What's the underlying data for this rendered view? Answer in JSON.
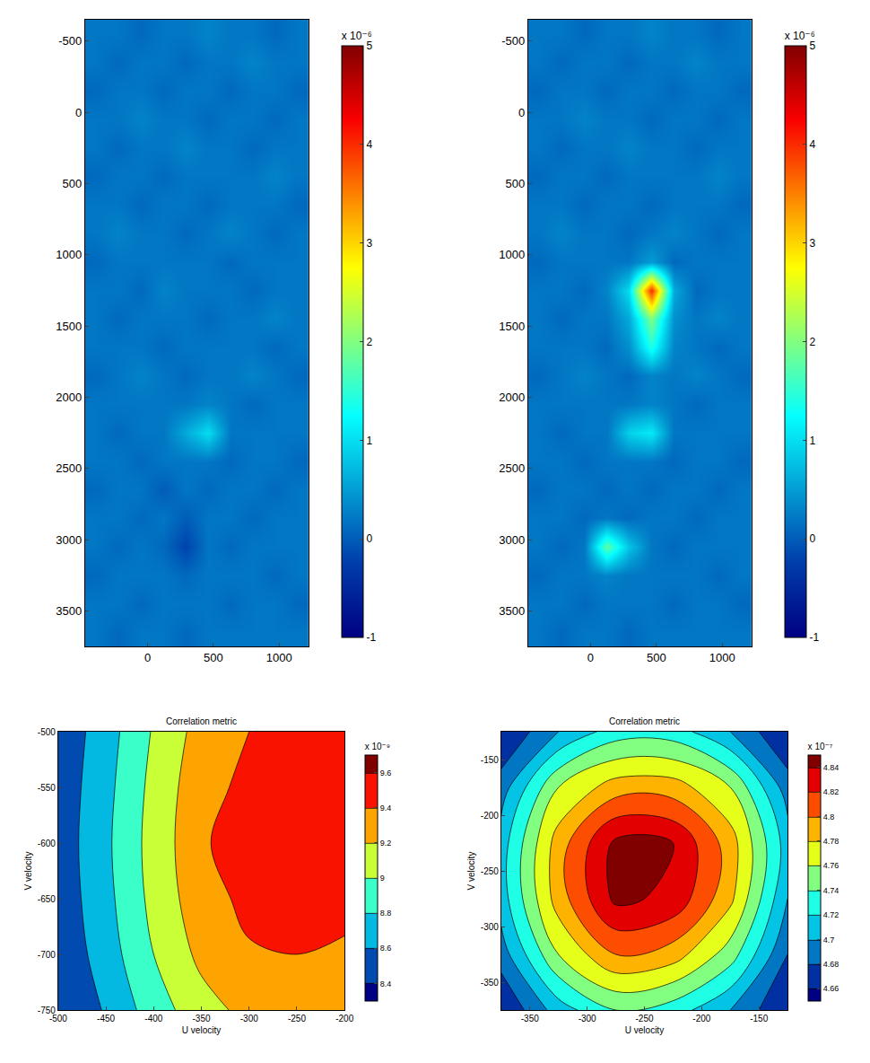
{
  "chart_data": [
    {
      "type": "heatmap",
      "x": [
        -475,
        -305,
        -135,
        35,
        205,
        375,
        545,
        715,
        885,
        1055,
        1225
      ],
      "y": [
        -650,
        -450,
        -250,
        -50,
        150,
        350,
        550,
        750,
        950,
        1150,
        1350,
        1550,
        1750,
        1950,
        2150,
        2350,
        2550,
        2750,
        2950,
        3150,
        3350,
        3550,
        3750
      ],
      "xlim": [
        -475,
        1225
      ],
      "ylim": [
        3750,
        -650
      ],
      "xticks": [
        0,
        500,
        1000
      ],
      "yticks": [
        -500,
        0,
        500,
        1000,
        1500,
        2000,
        2500,
        3000,
        3500
      ],
      "zlim": [
        -1,
        5
      ],
      "zticks": [
        -1,
        0,
        1,
        2,
        3,
        4,
        5
      ],
      "colorbar_label": "x 10⁻⁶",
      "z": [
        [
          0.2,
          0.2,
          0.1,
          0.2,
          0.2,
          0.3,
          0.2,
          0.2,
          0.1,
          0.2
        ],
        [
          0.2,
          0.1,
          0.2,
          0.2,
          0.1,
          0.2,
          0.2,
          0.3,
          0.2,
          0.2
        ],
        [
          0.1,
          0.2,
          0.2,
          0.1,
          0.2,
          0.2,
          0.1,
          0.2,
          0.2,
          0.1
        ],
        [
          0.2,
          0.2,
          0.3,
          0.2,
          0.2,
          0.1,
          0.2,
          0.2,
          0.1,
          0.2
        ],
        [
          0.2,
          0.1,
          0.2,
          0.2,
          0.3,
          0.2,
          0.2,
          0.1,
          0.2,
          0.2
        ],
        [
          0.1,
          0.2,
          0.2,
          0.1,
          0.2,
          0.2,
          0.2,
          0.2,
          0.3,
          0.2
        ],
        [
          0.2,
          0.2,
          0.1,
          0.2,
          0.2,
          0.1,
          0.2,
          0.2,
          0.2,
          0.1
        ],
        [
          0.2,
          0.3,
          0.2,
          0.2,
          0.1,
          0.2,
          0.3,
          0.2,
          0.1,
          0.2
        ],
        [
          0.1,
          0.2,
          0.2,
          0.2,
          0.2,
          0.2,
          0.1,
          0.2,
          0.2,
          0.2
        ],
        [
          0.2,
          0.2,
          0.1,
          0.3,
          0.2,
          0.2,
          0.2,
          0.1,
          0.2,
          0.2
        ],
        [
          0.2,
          0.1,
          0.2,
          0.2,
          0.2,
          0.1,
          0.2,
          0.2,
          0.3,
          0.2
        ],
        [
          0.2,
          0.2,
          0.2,
          0.1,
          0.2,
          0.2,
          0.2,
          0.2,
          0.1,
          0.2
        ],
        [
          0.1,
          0.2,
          0.3,
          0.2,
          0.1,
          0.2,
          0.2,
          0.3,
          0.2,
          0.1
        ],
        [
          0.2,
          0.2,
          0.2,
          0.2,
          0.2,
          0.3,
          0.2,
          0.1,
          0.2,
          0.2
        ],
        [
          0.2,
          0.1,
          0.2,
          0.2,
          0.6,
          1.0,
          0.2,
          0.2,
          0.2,
          0.2
        ],
        [
          0.2,
          0.2,
          0.1,
          0.2,
          0.2,
          0.2,
          0.1,
          0.2,
          0.2,
          0.1
        ],
        [
          0.1,
          0.2,
          0.2,
          0.0,
          0.2,
          0.1,
          0.2,
          0.2,
          0.1,
          0.2
        ],
        [
          0.2,
          0.2,
          0.1,
          0.2,
          0.0,
          0.2,
          0.2,
          0.1,
          0.2,
          0.2
        ],
        [
          0.2,
          0.1,
          0.2,
          0.1,
          -0.2,
          0.2,
          0.1,
          0.2,
          0.2,
          0.2
        ],
        [
          0.1,
          0.2,
          0.2,
          0.2,
          0.1,
          0.2,
          0.2,
          0.2,
          0.1,
          0.2
        ],
        [
          0.2,
          0.2,
          0.1,
          0.2,
          0.2,
          0.2,
          0.1,
          0.2,
          0.2,
          0.1
        ],
        [
          0.2,
          0.1,
          0.2,
          0.2,
          0.1,
          0.2,
          0.2,
          0.2,
          0.2,
          0.2
        ]
      ]
    },
    {
      "type": "heatmap",
      "x": [
        -475,
        -305,
        -135,
        35,
        205,
        375,
        545,
        715,
        885,
        1055,
        1225
      ],
      "y": [
        -650,
        -450,
        -250,
        -50,
        150,
        350,
        550,
        750,
        950,
        1150,
        1350,
        1550,
        1750,
        1950,
        2150,
        2350,
        2550,
        2750,
        2950,
        3150,
        3350,
        3550,
        3750
      ],
      "xlim": [
        -475,
        1225
      ],
      "ylim": [
        3750,
        -650
      ],
      "xticks": [
        0,
        500,
        1000
      ],
      "yticks": [
        -500,
        0,
        500,
        1000,
        1500,
        2000,
        2500,
        3000,
        3500
      ],
      "zlim": [
        -1,
        5
      ],
      "zticks": [
        -1,
        0,
        1,
        2,
        3,
        4,
        5
      ],
      "colorbar_label": "x 10⁻⁶",
      "z": [
        [
          0.2,
          0.2,
          0.1,
          0.2,
          0.2,
          0.3,
          0.2,
          0.2,
          0.1,
          0.2
        ],
        [
          0.2,
          0.1,
          0.2,
          0.2,
          0.1,
          0.2,
          0.2,
          0.3,
          0.2,
          0.2
        ],
        [
          0.1,
          0.2,
          0.2,
          0.1,
          0.2,
          0.2,
          0.1,
          0.2,
          0.2,
          0.1
        ],
        [
          0.2,
          0.2,
          0.3,
          0.2,
          0.2,
          0.1,
          0.2,
          0.2,
          0.1,
          0.2
        ],
        [
          0.2,
          0.1,
          0.2,
          0.2,
          0.3,
          0.2,
          0.2,
          0.1,
          0.2,
          0.2
        ],
        [
          0.1,
          0.2,
          0.2,
          0.1,
          0.2,
          0.2,
          0.2,
          0.2,
          0.3,
          0.2
        ],
        [
          0.2,
          0.2,
          0.1,
          0.2,
          0.2,
          0.1,
          0.2,
          0.2,
          0.2,
          0.1
        ],
        [
          0.2,
          0.3,
          0.2,
          0.2,
          0.1,
          0.2,
          0.3,
          0.2,
          0.1,
          0.2
        ],
        [
          0.1,
          0.2,
          0.2,
          0.2,
          0.2,
          0.5,
          0.1,
          0.2,
          0.2,
          0.2
        ],
        [
          0.2,
          0.2,
          0.1,
          0.3,
          1.0,
          4.0,
          0.6,
          0.1,
          0.2,
          0.2
        ],
        [
          0.2,
          0.1,
          0.2,
          0.2,
          0.6,
          2.0,
          0.4,
          0.2,
          0.3,
          0.2
        ],
        [
          0.2,
          0.2,
          0.2,
          0.1,
          0.4,
          1.4,
          0.3,
          0.2,
          0.1,
          0.2
        ],
        [
          0.1,
          0.2,
          0.3,
          0.2,
          0.1,
          0.3,
          0.2,
          0.3,
          0.2,
          0.1
        ],
        [
          0.2,
          0.2,
          0.2,
          0.2,
          0.2,
          0.3,
          0.2,
          0.1,
          0.2,
          0.2
        ],
        [
          0.2,
          0.1,
          0.2,
          0.2,
          0.9,
          1.1,
          0.2,
          0.2,
          0.2,
          0.2
        ],
        [
          0.2,
          0.2,
          0.1,
          0.2,
          0.2,
          0.2,
          0.1,
          0.2,
          0.2,
          0.1
        ],
        [
          0.1,
          0.2,
          0.2,
          0.1,
          0.2,
          0.1,
          0.2,
          0.2,
          0.1,
          0.2
        ],
        [
          0.2,
          0.2,
          0.1,
          0.2,
          0.1,
          0.2,
          0.2,
          0.1,
          0.2,
          0.2
        ],
        [
          0.2,
          0.1,
          0.2,
          1.8,
          0.8,
          0.2,
          0.1,
          0.2,
          0.2,
          0.2
        ],
        [
          0.1,
          0.2,
          0.2,
          0.3,
          0.2,
          0.2,
          0.2,
          0.2,
          0.1,
          0.2
        ],
        [
          0.2,
          0.2,
          0.1,
          0.2,
          0.2,
          0.2,
          0.1,
          0.2,
          0.2,
          0.1
        ],
        [
          0.2,
          0.1,
          0.2,
          0.2,
          0.1,
          0.2,
          0.2,
          0.2,
          0.2,
          0.2
        ]
      ]
    },
    {
      "type": "contour",
      "title": "Correlation metric",
      "x_label": "U velocity",
      "y_label": "V velocity",
      "x": [
        -500,
        -450,
        -400,
        -350,
        -300,
        -250,
        -200
      ],
      "y": [
        -750,
        -700,
        -650,
        -600,
        -550,
        -500
      ],
      "xlim": [
        -500,
        -200
      ],
      "ylim": [
        -750,
        -500
      ],
      "xticks": [
        -500,
        -450,
        -400,
        -350,
        -300,
        -250,
        -200
      ],
      "yticks": [
        -750,
        -700,
        -650,
        -600,
        -550,
        -500
      ],
      "zlim": [
        8.35,
        9.62
      ],
      "zticks": [
        8.4,
        8.6,
        8.8,
        9,
        9.2,
        9.4,
        9.6
      ],
      "colorbar_label": "x 10⁻⁹",
      "z": [
        [
          8.4,
          8.62,
          8.9,
          9.12,
          9.26,
          9.3,
          9.28
        ],
        [
          8.44,
          8.7,
          9.0,
          9.25,
          9.38,
          9.4,
          9.38
        ],
        [
          8.47,
          8.74,
          9.06,
          9.32,
          9.45,
          9.46,
          9.44
        ],
        [
          8.48,
          8.76,
          9.08,
          9.35,
          9.6,
          9.47,
          9.45
        ],
        [
          8.47,
          8.74,
          9.06,
          9.33,
          9.45,
          9.45,
          9.43
        ],
        [
          8.45,
          8.71,
          9.02,
          9.28,
          9.4,
          9.41,
          9.4
        ]
      ]
    },
    {
      "type": "contour",
      "title": "Correlation metric",
      "x_label": "U velocity",
      "y_label": "V velocity",
      "x": [
        -375,
        -325,
        -275,
        -225,
        -175,
        -125
      ],
      "y": [
        -375,
        -325,
        -275,
        -225,
        -175,
        -125
      ],
      "xlim": [
        -375,
        -125
      ],
      "ylim": [
        -375,
        -125
      ],
      "xticks": [
        -350,
        -300,
        -250,
        -200,
        -150
      ],
      "yticks": [
        -350,
        -300,
        -250,
        -200,
        -150
      ],
      "zlim": [
        4.655,
        4.845
      ],
      "zticks": [
        4.66,
        4.68,
        4.7,
        4.72,
        4.74,
        4.76,
        4.78,
        4.8,
        4.82,
        4.84
      ],
      "colorbar_label": "x 10⁻⁷",
      "z": [
        [
          4.66,
          4.71,
          4.74,
          4.73,
          4.7,
          4.66
        ],
        [
          4.69,
          4.76,
          4.8,
          4.79,
          4.75,
          4.68
        ],
        [
          4.71,
          4.79,
          4.845,
          4.835,
          4.785,
          4.7
        ],
        [
          4.71,
          4.79,
          4.845,
          4.84,
          4.79,
          4.71
        ],
        [
          4.69,
          4.76,
          4.79,
          4.79,
          4.76,
          4.69
        ],
        [
          4.66,
          4.7,
          4.73,
          4.73,
          4.7,
          4.66
        ]
      ]
    }
  ]
}
